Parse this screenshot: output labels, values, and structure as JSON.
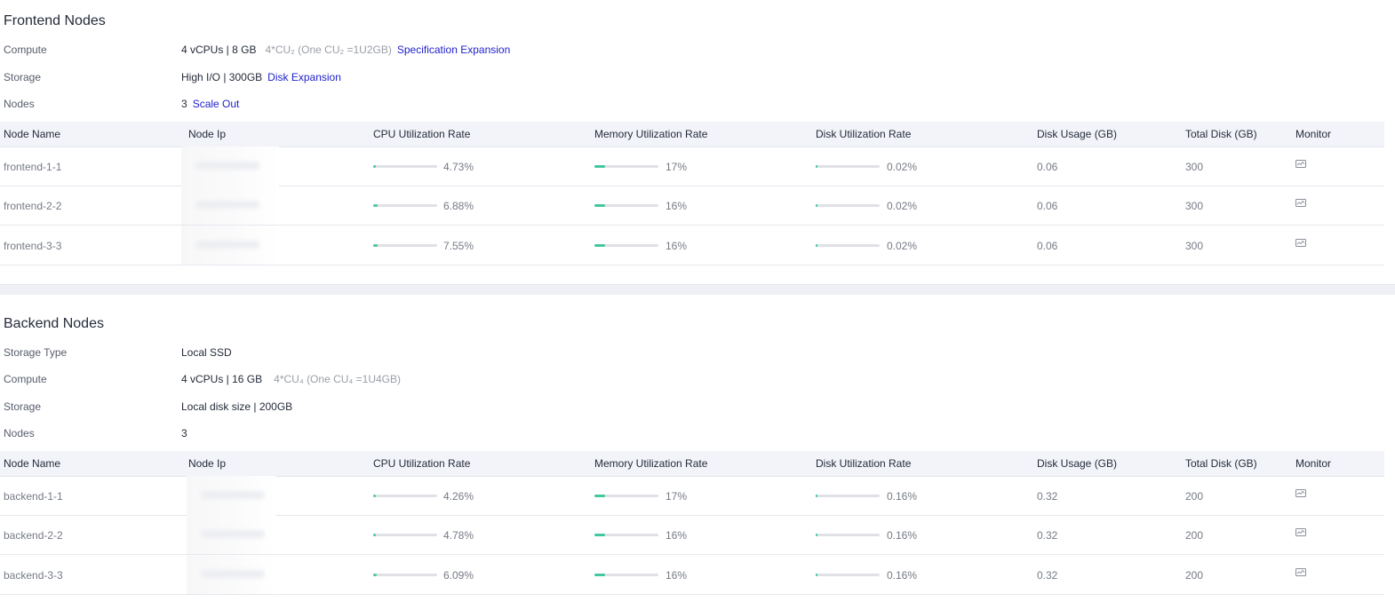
{
  "colors": {
    "bar_fill_cpu": "#4ec9a0",
    "bar_fill_mem": "#42c89e",
    "bar_track": "#dfe1e6",
    "link": "#2222cc"
  },
  "frontend": {
    "title": "Frontend Nodes",
    "compute": {
      "label": "Compute",
      "value": "4 vCPUs | 8 GB",
      "cu": "4*CU₂ (One CU₂ =1U2GB)",
      "link": "Specification Expansion"
    },
    "storage": {
      "label": "Storage",
      "value": "High I/O | 300GB",
      "link": "Disk Expansion"
    },
    "nodes": {
      "label": "Nodes",
      "value": "3",
      "link": "Scale Out"
    },
    "columns": [
      "Node Name",
      "Node Ip",
      "CPU Utilization Rate",
      "Memory Utilization Rate",
      "Disk Utilization Rate",
      "Disk Usage (GB)",
      "Total Disk (GB)",
      "Monitor"
    ],
    "rows": [
      {
        "name": "frontend-1-1",
        "cpu": "4.73%",
        "cpu_frac": 0.0473,
        "mem": "17%",
        "mem_frac": 0.17,
        "disk": "0.02%",
        "disk_frac": 0.0002,
        "usage": "0.06",
        "total": "300",
        "monitor_icon": "monitor-chart-icon"
      },
      {
        "name": "frontend-2-2",
        "cpu": "6.88%",
        "cpu_frac": 0.0688,
        "mem": "16%",
        "mem_frac": 0.16,
        "disk": "0.02%",
        "disk_frac": 0.0002,
        "usage": "0.06",
        "total": "300",
        "monitor_icon": "monitor-chart-icon"
      },
      {
        "name": "frontend-3-3",
        "cpu": "7.55%",
        "cpu_frac": 0.0755,
        "mem": "16%",
        "mem_frac": 0.16,
        "disk": "0.02%",
        "disk_frac": 0.0002,
        "usage": "0.06",
        "total": "300",
        "monitor_icon": "monitor-chart-icon"
      }
    ]
  },
  "backend": {
    "title": "Backend Nodes",
    "storage_type": {
      "label": "Storage Type",
      "value": "Local SSD"
    },
    "compute": {
      "label": "Compute",
      "value": "4 vCPUs | 16 GB",
      "cu": "4*CU₄ (One CU₄ =1U4GB)"
    },
    "storage": {
      "label": "Storage",
      "value": "Local disk size | 200GB"
    },
    "nodes": {
      "label": "Nodes",
      "value": "3"
    },
    "columns": [
      "Node Name",
      "Node Ip",
      "CPU Utilization Rate",
      "Memory Utilization Rate",
      "Disk Utilization Rate",
      "Disk Usage (GB)",
      "Total Disk (GB)",
      "Monitor"
    ],
    "rows": [
      {
        "name": "backend-1-1",
        "cpu": "4.26%",
        "cpu_frac": 0.0426,
        "mem": "17%",
        "mem_frac": 0.17,
        "disk": "0.16%",
        "disk_frac": 0.0016,
        "usage": "0.32",
        "total": "200",
        "monitor_icon": "monitor-chart-icon"
      },
      {
        "name": "backend-2-2",
        "cpu": "4.78%",
        "cpu_frac": 0.0478,
        "mem": "16%",
        "mem_frac": 0.16,
        "disk": "0.16%",
        "disk_frac": 0.0016,
        "usage": "0.32",
        "total": "200",
        "monitor_icon": "monitor-chart-icon"
      },
      {
        "name": "backend-3-3",
        "cpu": "6.09%",
        "cpu_frac": 0.0609,
        "mem": "16%",
        "mem_frac": 0.16,
        "disk": "0.16%",
        "disk_frac": 0.0016,
        "usage": "0.32",
        "total": "200",
        "monitor_icon": "monitor-chart-icon"
      }
    ]
  }
}
